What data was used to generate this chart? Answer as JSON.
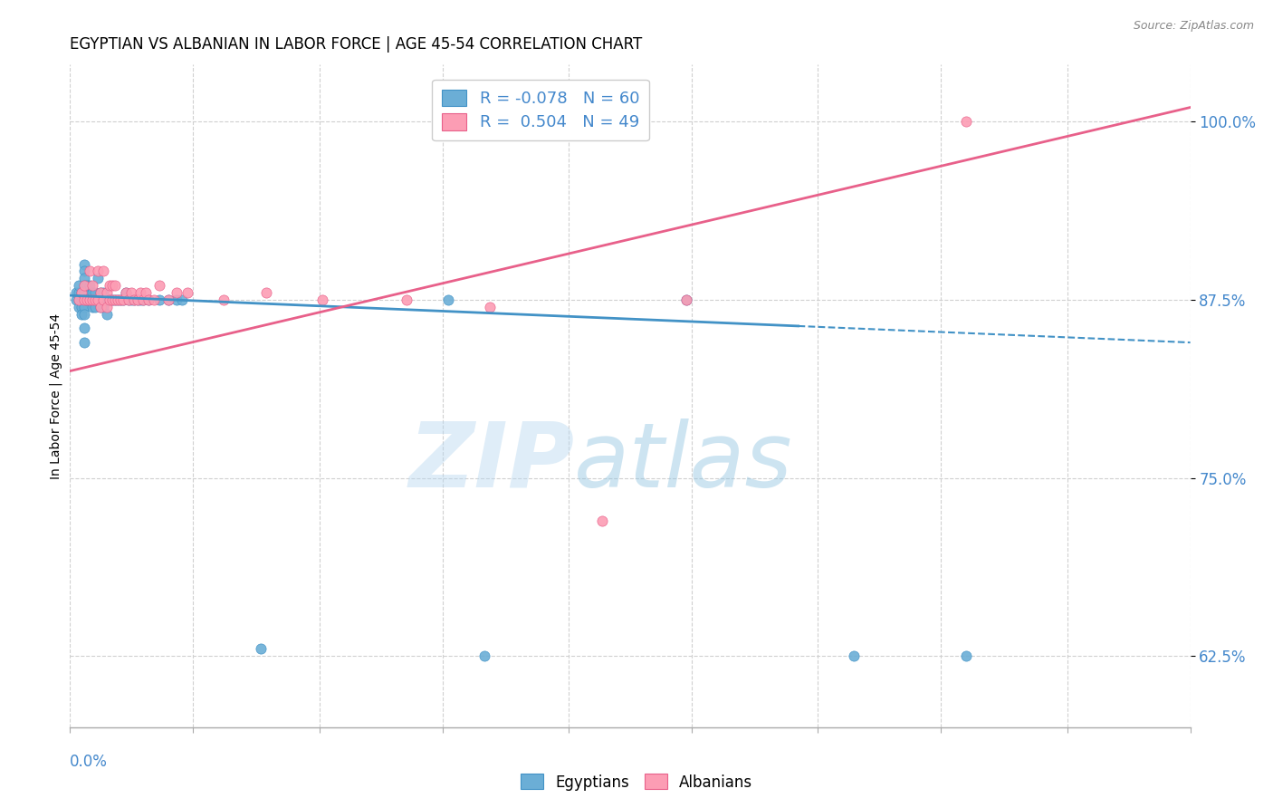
{
  "title": "EGYPTIAN VS ALBANIAN IN LABOR FORCE | AGE 45-54 CORRELATION CHART",
  "source": "Source: ZipAtlas.com",
  "ylabel": "In Labor Force | Age 45-54",
  "xlim": [
    0.0,
    0.4
  ],
  "ylim": [
    0.575,
    1.04
  ],
  "yticks": [
    0.625,
    0.75,
    0.875,
    1.0
  ],
  "ytick_labels": [
    "62.5%",
    "75.0%",
    "87.5%",
    "100.0%"
  ],
  "watermark_zip": "ZIP",
  "watermark_atlas": "atlas",
  "legend_R_egyptian": "-0.078",
  "legend_N_egyptian": "60",
  "legend_R_albanian": "0.504",
  "legend_N_albanian": "49",
  "egyptian_color": "#6baed6",
  "albanian_color": "#fc9db4",
  "trendline_egyptian_color": "#4292c6",
  "trendline_albanian_color": "#e8608a",
  "background_color": "#ffffff",
  "grid_color": "#d0d0d0",
  "egyptian_points_x": [
    0.002,
    0.002,
    0.003,
    0.003,
    0.003,
    0.003,
    0.004,
    0.004,
    0.004,
    0.004,
    0.005,
    0.005,
    0.005,
    0.005,
    0.005,
    0.005,
    0.005,
    0.005,
    0.005,
    0.005,
    0.006,
    0.006,
    0.007,
    0.007,
    0.008,
    0.008,
    0.009,
    0.009,
    0.01,
    0.01,
    0.011,
    0.011,
    0.012,
    0.012,
    0.013,
    0.013,
    0.014,
    0.015,
    0.016,
    0.017,
    0.018,
    0.019,
    0.02,
    0.021,
    0.022,
    0.023,
    0.024,
    0.025,
    0.026,
    0.028,
    0.032,
    0.035,
    0.038,
    0.04,
    0.068,
    0.135,
    0.148,
    0.22,
    0.28,
    0.32
  ],
  "egyptian_points_y": [
    0.875,
    0.88,
    0.875,
    0.88,
    0.885,
    0.87,
    0.875,
    0.88,
    0.87,
    0.865,
    0.9,
    0.895,
    0.89,
    0.885,
    0.88,
    0.875,
    0.87,
    0.865,
    0.855,
    0.845,
    0.885,
    0.875,
    0.885,
    0.875,
    0.88,
    0.87,
    0.88,
    0.87,
    0.89,
    0.875,
    0.88,
    0.87,
    0.88,
    0.87,
    0.875,
    0.865,
    0.875,
    0.875,
    0.875,
    0.875,
    0.875,
    0.875,
    0.88,
    0.875,
    0.875,
    0.875,
    0.875,
    0.875,
    0.875,
    0.875,
    0.875,
    0.875,
    0.875,
    0.875,
    0.63,
    0.875,
    0.625,
    0.875,
    0.625,
    0.625
  ],
  "albanian_points_x": [
    0.003,
    0.004,
    0.005,
    0.005,
    0.006,
    0.007,
    0.007,
    0.008,
    0.008,
    0.009,
    0.01,
    0.01,
    0.011,
    0.011,
    0.012,
    0.012,
    0.013,
    0.013,
    0.014,
    0.014,
    0.015,
    0.015,
    0.016,
    0.016,
    0.017,
    0.018,
    0.019,
    0.02,
    0.021,
    0.022,
    0.023,
    0.024,
    0.025,
    0.026,
    0.027,
    0.028,
    0.03,
    0.032,
    0.035,
    0.038,
    0.042,
    0.055,
    0.07,
    0.09,
    0.12,
    0.15,
    0.19,
    0.22,
    0.32
  ],
  "albanian_points_y": [
    0.875,
    0.88,
    0.885,
    0.875,
    0.875,
    0.895,
    0.875,
    0.885,
    0.875,
    0.875,
    0.895,
    0.875,
    0.88,
    0.87,
    0.895,
    0.875,
    0.88,
    0.87,
    0.885,
    0.875,
    0.885,
    0.875,
    0.885,
    0.875,
    0.875,
    0.875,
    0.875,
    0.88,
    0.875,
    0.88,
    0.875,
    0.875,
    0.88,
    0.875,
    0.88,
    0.875,
    0.875,
    0.885,
    0.875,
    0.88,
    0.88,
    0.875,
    0.88,
    0.875,
    0.875,
    0.87,
    0.72,
    0.875,
    1.0
  ],
  "trendline_solid_end": 0.26,
  "trendline_egyptian_x0": 0.0,
  "trendline_egyptian_y0": 0.878,
  "trendline_egyptian_x1": 0.4,
  "trendline_egyptian_y1": 0.845,
  "trendline_albanian_x0": 0.0,
  "trendline_albanian_y0": 0.825,
  "trendline_albanian_x1": 0.4,
  "trendline_albanian_y1": 1.01,
  "title_fontsize": 12,
  "tick_label_color": "#4488cc",
  "source_color": "#888888",
  "ylabel_fontsize": 10,
  "xtick_positions": [
    0.0,
    0.044,
    0.089,
    0.133,
    0.178,
    0.222,
    0.267,
    0.311,
    0.356,
    0.4
  ]
}
